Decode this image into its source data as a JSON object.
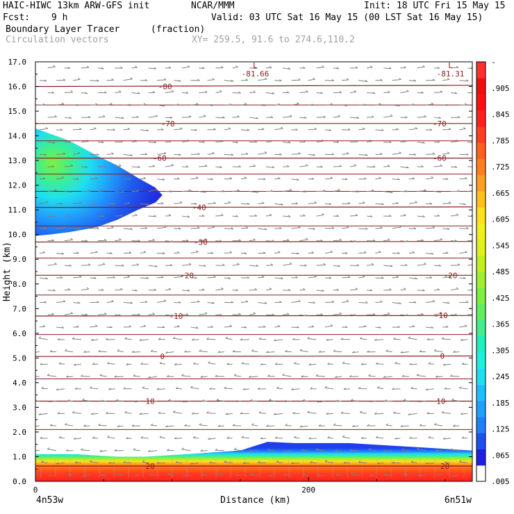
{
  "header": {
    "model": "HAIC-HIWC 13km ARW-GFS init",
    "org": "NCAR/MMM",
    "init": "Init: 18 UTC Fri 15 May 15",
    "fcst_label": "Fcst:",
    "fcst_value": "9 h",
    "valid": "Valid: 03 UTC Sat 16 May 15 (00 LST Sat 16 May 15)",
    "field1": "Boundary Layer Tracer",
    "field1_units": "(fraction)",
    "field2": "Circulation vectors",
    "xy": "XY= 259.5, 91.6 to 274.6,110.2"
  },
  "colors": {
    "contour": "#8b1a1a",
    "vector": "#7f7f7f",
    "colorbar": [
      "#ffffff",
      "#1f1fdf",
      "#1e4fef",
      "#1f7fff",
      "#1fa0ff",
      "#1fbfff",
      "#1fdfef",
      "#1fefdf",
      "#1fefbf",
      "#3fef8f",
      "#5fef5f",
      "#7fef3f",
      "#9fef2f",
      "#bfef1f",
      "#dfef1f",
      "#efef1f",
      "#ffdf1f",
      "#ffbf1f",
      "#ff9f1f",
      "#ff7f1f",
      "#ff5f1f",
      "#ff3f1f",
      "#ff1f1f",
      "#ff0f0f",
      "#ef0f0f",
      "#ff2f2f"
    ]
  },
  "chart_data": {
    "type": "heatmap",
    "xlabel": "Distance (km)",
    "ylabel": "Height (km)",
    "xlim": [
      0,
      320
    ],
    "ylim": [
      0,
      17
    ],
    "x_ticks": [
      {
        "v": 0,
        "label": "0"
      },
      {
        "v": 200,
        "label": "200"
      }
    ],
    "x_end_labels": [
      "4n53w",
      "6n51w"
    ],
    "y_ticks": [
      {
        "v": 0,
        "label": "0.0"
      },
      {
        "v": 1,
        "label": "1.0"
      },
      {
        "v": 2,
        "label": "2.0"
      },
      {
        "v": 3,
        "label": "3.0"
      },
      {
        "v": 4,
        "label": "4.0"
      },
      {
        "v": 5,
        "label": "5.0"
      },
      {
        "v": 6,
        "label": "6.0"
      },
      {
        "v": 7,
        "label": "7.0"
      },
      {
        "v": 8,
        "label": "8.0"
      },
      {
        "v": 9,
        "label": "9.0"
      },
      {
        "v": 10,
        "label": "10.0"
      },
      {
        "v": 11,
        "label": "11.0"
      },
      {
        "v": 12,
        "label": "12.0"
      },
      {
        "v": 13,
        "label": "13.0"
      },
      {
        "v": 14,
        "label": "14.0"
      },
      {
        "v": 15,
        "label": "15.0"
      },
      {
        "v": 16,
        "label": "16.0"
      },
      {
        "v": 17,
        "label": "17.0"
      }
    ],
    "colorbar_labels": [
      "-",
      ".905",
      ".845",
      ".785",
      ".725",
      ".665",
      ".605",
      ".545",
      ".485",
      ".425",
      ".365",
      ".305",
      ".245",
      ".185",
      ".125",
      ".065",
      ".005"
    ],
    "temperature_contours": [
      {
        "value": 20,
        "heights": [
          0.62,
          0.62
        ]
      },
      {
        "value": 10,
        "heights": [
          3.25,
          3.25
        ]
      },
      {
        "value": 0,
        "heights": [
          5.06,
          5.08
        ]
      },
      {
        "value": -10,
        "heights": [
          6.7,
          6.72
        ]
      },
      {
        "value": -20,
        "heights": [
          8.35,
          8.35
        ]
      },
      {
        "value": -30,
        "heights": [
          9.7,
          9.72
        ]
      },
      {
        "value": -40,
        "heights": [
          11.1,
          11.12
        ]
      },
      {
        "value": -60,
        "heights": [
          13.1,
          13.1
        ]
      },
      {
        "value": -70,
        "heights": [
          14.5,
          14.5
        ]
      },
      {
        "value": -80,
        "heights": [
          16.0,
          16.05
        ]
      }
    ],
    "contour_labels": [
      {
        "text": "20",
        "x": 84,
        "y": 0.62
      },
      {
        "text": "20",
        "x": 300,
        "y": 0.62
      },
      {
        "text": "10",
        "x": 84,
        "y": 3.25
      },
      {
        "text": "10",
        "x": 297,
        "y": 3.25
      },
      {
        "text": "0",
        "x": 93,
        "y": 5.06
      },
      {
        "text": "0",
        "x": 298,
        "y": 5.08
      },
      {
        "text": "-10",
        "x": 103,
        "y": 6.7
      },
      {
        "text": "-10",
        "x": 297,
        "y": 6.72
      },
      {
        "text": "-20",
        "x": 111,
        "y": 8.35
      },
      {
        "text": "-20",
        "x": 304,
        "y": 8.35
      },
      {
        "text": "-30",
        "x": 121,
        "y": 9.7
      },
      {
        "text": "-40",
        "x": 120,
        "y": 11.1
      },
      {
        "text": "-60",
        "x": 91,
        "y": 13.1
      },
      {
        "text": "-60",
        "x": 296,
        "y": 13.1
      },
      {
        "text": "-70",
        "x": 97,
        "y": 14.5
      },
      {
        "text": "-70",
        "x": 296,
        "y": 14.5
      },
      {
        "text": "-80",
        "x": 95,
        "y": 16.0
      }
    ],
    "lows": [
      {
        "symbol": "L",
        "value": "-81.66",
        "x": 161,
        "y": 17
      },
      {
        "symbol": "L",
        "value": "-81.31",
        "x": 304,
        "y": 17
      }
    ],
    "tracer_upper": {
      "outline": [
        [
          0,
          14.3
        ],
        [
          10,
          14.1
        ],
        [
          25,
          13.8
        ],
        [
          45,
          13.2
        ],
        [
          60,
          12.8
        ],
        [
          75,
          12.3
        ],
        [
          88,
          11.9
        ],
        [
          93,
          11.6
        ],
        [
          88,
          11.3
        ],
        [
          75,
          11.0
        ],
        [
          60,
          10.6
        ],
        [
          45,
          10.3
        ],
        [
          25,
          10.1
        ],
        [
          10,
          10.0
        ],
        [
          0,
          9.95
        ]
      ],
      "core_center": [
        14,
        12.7
      ],
      "core_value": 0.3
    },
    "tracer_boundary_layer": {
      "top_heights": [
        [
          0,
          1.1
        ],
        [
          30,
          1.1
        ],
        [
          60,
          1.0
        ],
        [
          80,
          1.0
        ],
        [
          110,
          1.1
        ],
        [
          150,
          1.25
        ],
        [
          170,
          1.6
        ],
        [
          190,
          1.55
        ],
        [
          230,
          1.55
        ],
        [
          260,
          1.45
        ],
        [
          290,
          1.35
        ],
        [
          320,
          1.25
        ]
      ],
      "surface_value": 0.99
    }
  }
}
